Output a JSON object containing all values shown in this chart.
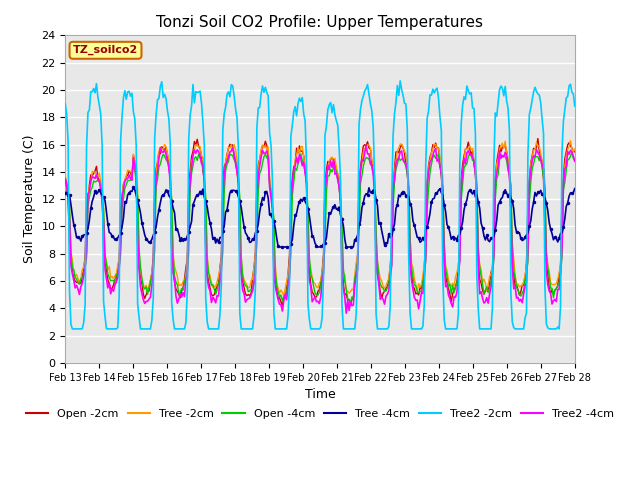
{
  "title": "Tonzi Soil CO2 Profile: Upper Temperatures",
  "xlabel": "Time",
  "ylabel": "Soil Temperature (C)",
  "ylim": [
    0,
    24
  ],
  "yticks": [
    0,
    2,
    4,
    6,
    8,
    10,
    12,
    14,
    16,
    18,
    20,
    22,
    24
  ],
  "xtick_labels": [
    "Feb 13",
    "Feb 14",
    "Feb 15",
    "Feb 16",
    "Feb 17",
    "Feb 18",
    "Feb 19",
    "Feb 20",
    "Feb 21",
    "Feb 22",
    "Feb 23",
    "Feb 24",
    "Feb 25",
    "Feb 26",
    "Feb 27",
    "Feb 28"
  ],
  "legend_label": "TZ_soilco2",
  "series": {
    "Open-2cm": {
      "color": "#cc0000",
      "lw": 1.0
    },
    "Tree-2cm": {
      "color": "#ff9900",
      "lw": 1.0
    },
    "Open-4cm": {
      "color": "#00cc00",
      "lw": 1.0
    },
    "Tree-4cm": {
      "color": "#000099",
      "lw": 1.2
    },
    "Tree2-2cm": {
      "color": "#00ccff",
      "lw": 1.2
    },
    "Tree2-4cm": {
      "color": "#ff00ff",
      "lw": 1.2
    }
  },
  "bg_plot": "#e8e8e8",
  "bg_fig": "#ffffff",
  "grid_color": "#ffffff",
  "title_fontsize": 11,
  "label_fontsize": 9,
  "tick_fontsize": 8
}
